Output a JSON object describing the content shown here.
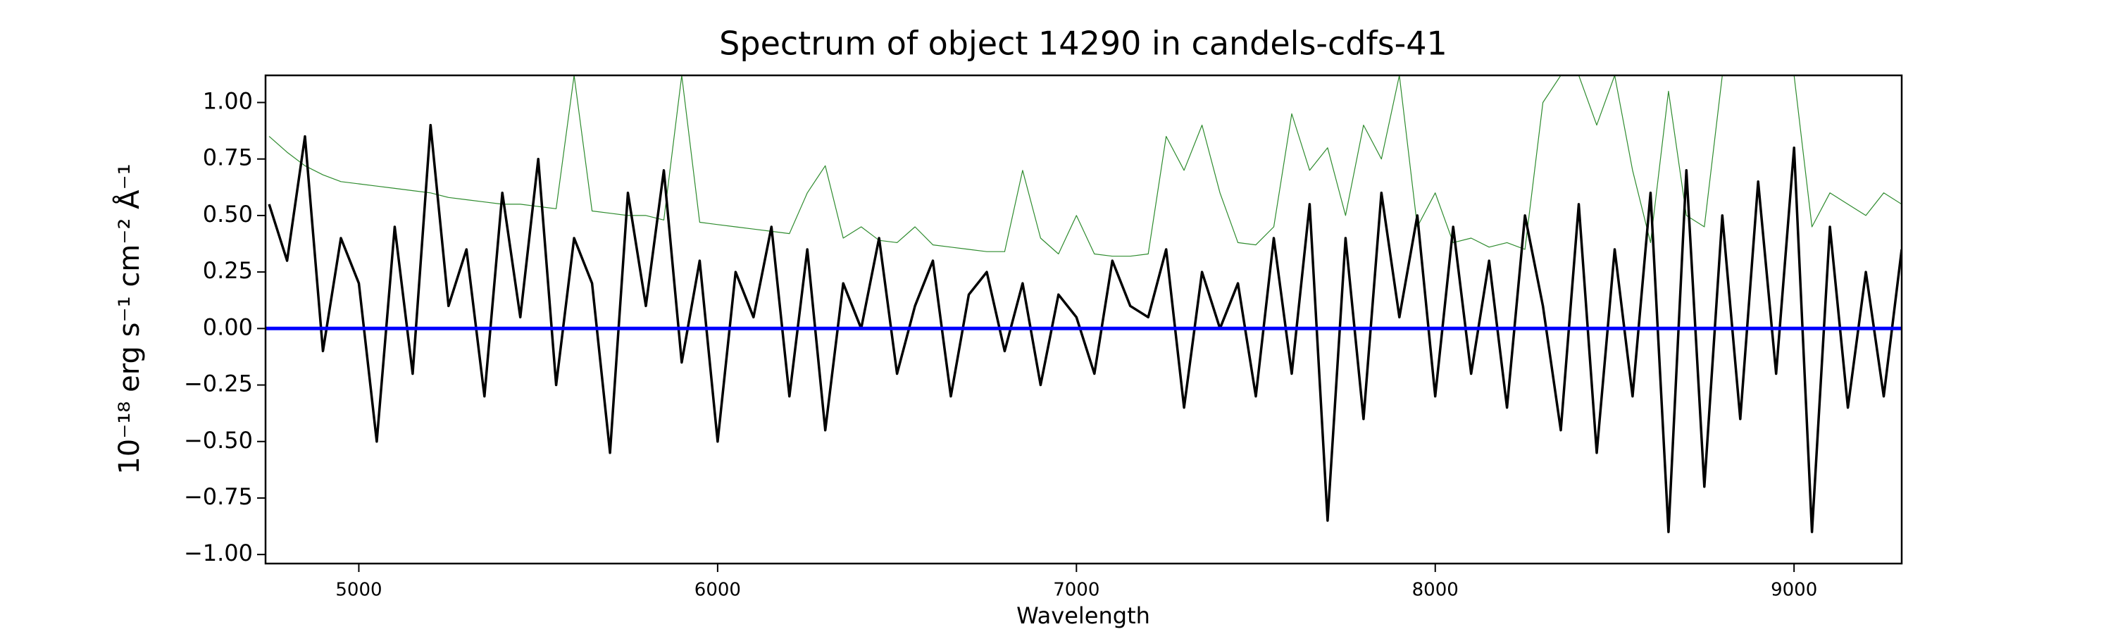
{
  "chart_data": {
    "type": "line",
    "title": "Spectrum of object 14290 in candels-cdfs-41",
    "x_label": "Wavelength",
    "y_label": "10⁻¹⁸ erg s⁻¹ cm⁻² Å⁻¹",
    "xlim": [
      4740,
      9300
    ],
    "ylim": [
      -1.04,
      1.12
    ],
    "xticks": [
      5000,
      6000,
      7000,
      8000,
      9000
    ],
    "yticks": [
      {
        "value": -1,
        "label": "−1.00"
      },
      {
        "value": -0.75,
        "label": "−0.75"
      },
      {
        "value": -0.5,
        "label": "−0.50"
      },
      {
        "value": -0.25,
        "label": "−0.25"
      },
      {
        "value": 0,
        "label": "0.00"
      },
      {
        "value": 0.25,
        "label": "0.25"
      },
      {
        "value": 0.5,
        "label": "0.50"
      },
      {
        "value": 0.75,
        "label": "0.75"
      },
      {
        "value": 1,
        "label": "1.00"
      }
    ],
    "series": [
      {
        "color": "#2e8b2e",
        "width": 1.2,
        "x": [
          4750,
          4800,
          4850,
          4900,
          4950,
          5000,
          5050,
          5100,
          5150,
          5200,
          5250,
          5300,
          5350,
          5400,
          5450,
          5500,
          5550,
          5600,
          5650,
          5700,
          5750,
          5800,
          5850,
          5900,
          5950,
          6000,
          6050,
          6100,
          6150,
          6200,
          6250,
          6300,
          6350,
          6400,
          6450,
          6500,
          6550,
          6600,
          6650,
          6700,
          6750,
          6800,
          6850,
          6900,
          6950,
          7000,
          7050,
          7100,
          7150,
          7200,
          7250,
          7300,
          7350,
          7400,
          7450,
          7500,
          7550,
          7600,
          7650,
          7700,
          7750,
          7800,
          7850,
          7900,
          7950,
          8000,
          8050,
          8100,
          8150,
          8200,
          8250,
          8300,
          8350,
          8400,
          8450,
          8500,
          8550,
          8600,
          8650,
          8700,
          8750,
          8800,
          8850,
          8900,
          8950,
          9000,
          9050,
          9100,
          9150,
          9200,
          9250,
          9300
        ],
        "values": [
          0.85,
          0.78,
          0.72,
          0.68,
          0.65,
          0.64,
          0.63,
          0.62,
          0.61,
          0.6,
          0.58,
          0.57,
          0.56,
          0.55,
          0.55,
          0.54,
          0.53,
          1.12,
          0.52,
          0.51,
          0.5,
          0.5,
          0.48,
          1.12,
          0.47,
          0.46,
          0.45,
          0.44,
          0.43,
          0.42,
          0.6,
          0.72,
          0.4,
          0.45,
          0.39,
          0.38,
          0.45,
          0.37,
          0.36,
          0.35,
          0.34,
          0.34,
          0.7,
          0.4,
          0.33,
          0.5,
          0.33,
          0.32,
          0.32,
          0.33,
          0.85,
          0.7,
          0.9,
          0.6,
          0.38,
          0.37,
          0.45,
          0.95,
          0.7,
          0.8,
          0.5,
          0.9,
          0.75,
          1.12,
          0.45,
          0.6,
          0.38,
          0.4,
          0.36,
          0.38,
          0.35,
          1.0,
          1.12,
          1.12,
          0.9,
          1.12,
          0.7,
          0.38,
          1.05,
          0.5,
          0.45,
          1.12,
          1.12,
          1.12,
          1.12,
          1.12,
          0.45,
          0.6,
          0.55,
          0.5,
          0.6,
          0.55
        ]
      },
      {
        "color": "#000000",
        "width": 3.5,
        "x": [
          4750,
          4800,
          4850,
          4900,
          4950,
          5000,
          5050,
          5100,
          5150,
          5200,
          5250,
          5300,
          5350,
          5400,
          5450,
          5500,
          5550,
          5600,
          5650,
          5700,
          5750,
          5800,
          5850,
          5900,
          5950,
          6000,
          6050,
          6100,
          6150,
          6200,
          6250,
          6300,
          6350,
          6400,
          6450,
          6500,
          6550,
          6600,
          6650,
          6700,
          6750,
          6800,
          6850,
          6900,
          6950,
          7000,
          7050,
          7100,
          7150,
          7200,
          7250,
          7300,
          7350,
          7400,
          7450,
          7500,
          7550,
          7600,
          7650,
          7700,
          7750,
          7800,
          7850,
          7900,
          7950,
          8000,
          8050,
          8100,
          8150,
          8200,
          8250,
          8300,
          8350,
          8400,
          8450,
          8500,
          8550,
          8600,
          8650,
          8700,
          8750,
          8800,
          8850,
          8900,
          8950,
          9000,
          9050,
          9100,
          9150,
          9200,
          9250,
          9300
        ],
        "values": [
          0.55,
          0.3,
          0.85,
          -0.1,
          0.4,
          0.2,
          -0.5,
          0.45,
          -0.2,
          0.9,
          0.1,
          0.35,
          -0.3,
          0.6,
          0.05,
          0.75,
          -0.25,
          0.4,
          0.2,
          -0.55,
          0.6,
          0.1,
          0.7,
          -0.15,
          0.3,
          -0.5,
          0.25,
          0.05,
          0.45,
          -0.3,
          0.35,
          -0.45,
          0.2,
          0.0,
          0.4,
          -0.2,
          0.1,
          0.3,
          -0.3,
          0.15,
          0.25,
          -0.1,
          0.2,
          -0.25,
          0.15,
          0.05,
          -0.2,
          0.3,
          0.1,
          0.05,
          0.35,
          -0.35,
          0.25,
          0.0,
          0.2,
          -0.3,
          0.4,
          -0.2,
          0.55,
          -0.85,
          0.4,
          -0.4,
          0.6,
          0.05,
          0.5,
          -0.3,
          0.45,
          -0.2,
          0.3,
          -0.35,
          0.5,
          0.1,
          -0.45,
          0.55,
          -0.55,
          0.35,
          -0.3,
          0.6,
          -0.9,
          0.7,
          -0.7,
          0.5,
          -0.4,
          0.65,
          -0.2,
          0.8,
          -0.9,
          0.45,
          -0.35,
          0.25,
          -0.3,
          0.35
        ]
      },
      {
        "color": "#0000ff",
        "width": 5,
        "x": [
          4740,
          9300
        ],
        "values": [
          0,
          0
        ]
      }
    ]
  }
}
